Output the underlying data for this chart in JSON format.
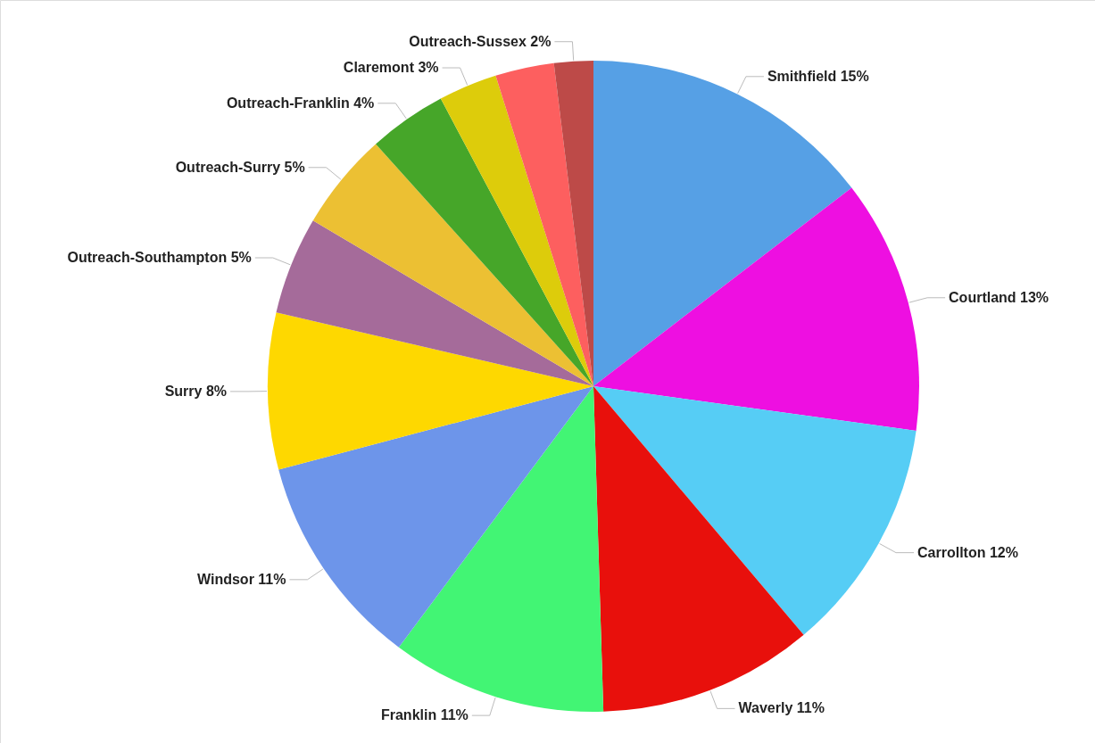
{
  "chart_data": {
    "type": "pie",
    "categories": [
      "Smithfield",
      "Courtland",
      "Carrollton",
      "Waverly",
      "Franklin",
      "Windsor",
      "Surry",
      "Outreach-Southampton",
      "Outreach-Surry",
      "Outreach-Franklin",
      "Claremont",
      null,
      "Outreach-Sussex"
    ],
    "values": [
      15,
      13,
      12,
      11,
      11,
      11,
      8,
      5,
      5,
      4,
      3,
      3,
      2
    ],
    "value_labels": [
      "15%",
      "13%",
      "12%",
      "11%",
      "11%",
      "11%",
      "8%",
      "5%",
      "5%",
      "4%",
      "3%",
      null,
      "2%"
    ],
    "colors": [
      "#56a0e5",
      "#ee0fe1",
      "#56cdf5",
      "#e8100c",
      "#42f574",
      "#6d95ea",
      "#fed800",
      "#a56b9a",
      "#ecc033",
      "#46a629",
      "#ddcc0b",
      "#fd5f5f",
      "#bd4a48"
    ]
  }
}
